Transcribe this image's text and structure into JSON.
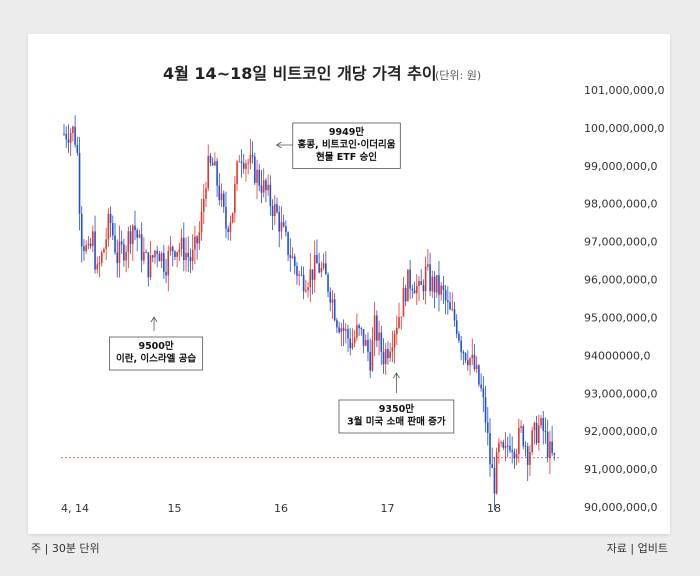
{
  "title": "4월 14~18일 비트코인 개당 가격 추이",
  "unit": "(단위: 원)",
  "footer_left": "주 | 30분 단위",
  "footer_right": "자료 | 업비트",
  "colors": {
    "up": "#e0352b",
    "down": "#1f4fd6",
    "refline": "#e0352b"
  },
  "chart_data": {
    "type": "candlestick",
    "title": "4월 14~18일 비트코인 개당 가격 추이",
    "unit": "(단위: 원)",
    "ylim": [
      90000000,
      101000000
    ],
    "yticks": [
      101000000,
      100000000,
      99000000,
      98000000,
      97000000,
      96000000,
      95000000,
      94000000,
      93000000,
      92000000,
      91000000,
      90000000
    ],
    "ytick_labels": [
      "101,000,000,0",
      "100,000,000,0",
      "99,000,000,0",
      "98,000,000,0",
      "97,000,000,0",
      "96,000,000,0",
      "95,000,000,0",
      "94000000,0",
      "93,000,000,0",
      "92,000,000,0",
      "91,000,000,0",
      "90,000,000,0"
    ],
    "xticks": [
      {
        "label": "4, 14",
        "day": 0
      },
      {
        "label": "15",
        "day": 1
      },
      {
        "label": "16",
        "day": 2
      },
      {
        "label": "17",
        "day": 3
      },
      {
        "label": "18",
        "day": 4
      }
    ],
    "interval": "30분",
    "reference_line": 91300000,
    "price_path": [
      [
        0.0,
        99850000
      ],
      [
        0.08,
        99950000
      ],
      [
        0.12,
        99600000
      ],
      [
        0.16,
        97200000
      ],
      [
        0.23,
        96600000
      ],
      [
        0.27,
        97100000
      ],
      [
        0.31,
        96100000
      ],
      [
        0.38,
        96900000
      ],
      [
        0.43,
        97600000
      ],
      [
        0.5,
        96600000
      ],
      [
        0.58,
        96900000
      ],
      [
        0.65,
        97500000
      ],
      [
        0.72,
        96800000
      ],
      [
        0.8,
        96300000
      ],
      [
        0.87,
        96900000
      ],
      [
        0.95,
        96400000
      ],
      [
        1.03,
        96900000
      ],
      [
        1.12,
        96800000
      ],
      [
        1.2,
        96500000
      ],
      [
        1.28,
        97300000
      ],
      [
        1.34,
        98900000
      ],
      [
        1.4,
        99000000
      ],
      [
        1.45,
        98400000
      ],
      [
        1.52,
        97400000
      ],
      [
        1.58,
        97800000
      ],
      [
        1.65,
        99400000
      ],
      [
        1.7,
        99200000
      ],
      [
        1.78,
        98900000
      ],
      [
        1.86,
        98500000
      ],
      [
        1.93,
        98100000
      ],
      [
        2.0,
        97700000
      ],
      [
        2.08,
        97000000
      ],
      [
        2.15,
        96500000
      ],
      [
        2.22,
        96000000
      ],
      [
        2.3,
        96100000
      ],
      [
        2.38,
        96400000
      ],
      [
        2.46,
        96000000
      ],
      [
        2.5,
        95700000
      ],
      [
        2.56,
        95000000
      ],
      [
        2.62,
        94700000
      ],
      [
        2.7,
        94300000
      ],
      [
        2.75,
        94600000
      ],
      [
        2.8,
        94500000
      ],
      [
        2.88,
        93900000
      ],
      [
        2.92,
        94800000
      ],
      [
        2.96,
        94300000
      ],
      [
        3.0,
        94000000
      ],
      [
        3.04,
        94200000
      ],
      [
        3.1,
        94700000
      ],
      [
        3.16,
        95200000
      ],
      [
        3.22,
        95900000
      ],
      [
        3.28,
        96000000
      ],
      [
        3.34,
        95600000
      ],
      [
        3.4,
        96200000
      ],
      [
        3.44,
        95900000
      ],
      [
        3.5,
        95800000
      ],
      [
        3.56,
        95600000
      ],
      [
        3.62,
        95100000
      ],
      [
        3.68,
        94900000
      ],
      [
        3.74,
        94200000
      ],
      [
        3.8,
        94000000
      ],
      [
        3.86,
        93600000
      ],
      [
        3.92,
        93000000
      ],
      [
        3.96,
        92300000
      ],
      [
        4.0,
        91200000
      ],
      [
        4.04,
        90600000
      ],
      [
        4.08,
        91500000
      ],
      [
        4.14,
        91300000
      ],
      [
        4.18,
        91800000
      ],
      [
        4.24,
        91600000
      ],
      [
        4.3,
        92000000
      ],
      [
        4.36,
        91400000
      ],
      [
        4.4,
        91800000
      ],
      [
        4.46,
        92100000
      ],
      [
        4.5,
        92000000
      ],
      [
        4.55,
        91500000
      ],
      [
        4.6,
        91200000
      ],
      [
        4.62,
        91200000
      ]
    ],
    "annotations": [
      {
        "lines": [
          "9500만",
          "이란, 이스라엘 공습"
        ],
        "day": 0.47,
        "value": 95200000
      },
      {
        "lines": [
          "9949만",
          "홍콩, 비트코인·이더리움",
          "현물 ETF 승인"
        ],
        "day": 1.62,
        "value": 99490000
      },
      {
        "lines": [
          "9350만",
          "3월 미국 소매 판매 증가"
        ],
        "day": 2.83,
        "value": 93500000
      }
    ]
  }
}
